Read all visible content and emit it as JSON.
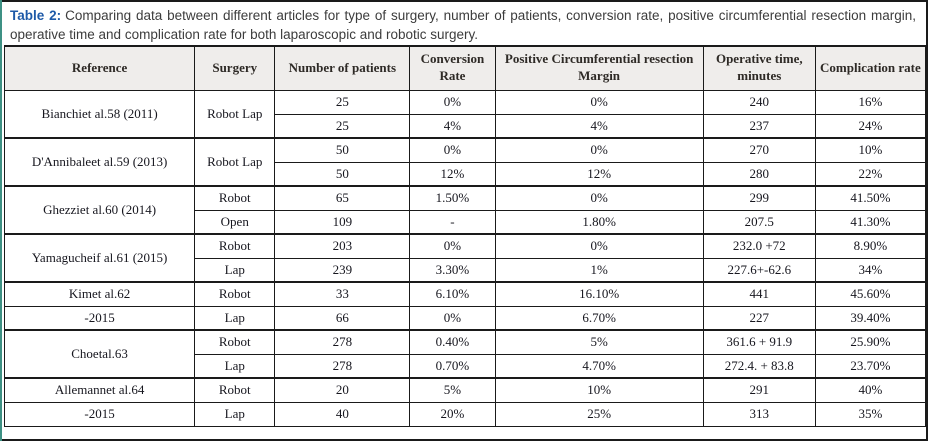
{
  "caption": {
    "label": "Table 2:",
    "text": "Comparing data between different articles for type of surgery, number of patients, conversion rate, positive circumferential resection margin, operative time and complication rate for both laparoscopic and robotic surgery."
  },
  "colors": {
    "caption_label": "#1e5aa8",
    "caption_text": "#3c3c3c",
    "header_bg": "#efedeb",
    "header_text": "#2e2a26",
    "cell_text": "#16161e",
    "border": "#1a1a1a",
    "page_edge_strip": "#3e9184"
  },
  "chart_data": {
    "type": "table",
    "title": "Table 2: Comparing data between different articles for type of surgery, number of patients, conversion rate, positive circumferential resection margin, operative time and complication rate for both laparoscopic and robotic surgery.",
    "columns": [
      "Reference",
      "Surgery",
      "Number of patients",
      "Conversion Rate",
      "Positive Circumferential resection Margin",
      "Operative time, minutes",
      "Complication rate"
    ]
  },
  "table": {
    "columns": [
      "Reference",
      "Surgery",
      "Number of patients",
      "Conversion Rate",
      "Positive Circumferential resection Margin",
      "Operative time, minutes",
      "Complication rate"
    ],
    "rows": [
      {
        "reference": {
          "text": "Bianchiet al.58 (2011)",
          "rowspan": 2
        },
        "surgery": {
          "text": "Robot Lap",
          "rowspan": 2
        },
        "values": [
          "25",
          "0%",
          "0%",
          "240",
          "16%"
        ]
      },
      {
        "values": [
          "25",
          "4%",
          "4%",
          "237",
          "24%"
        ]
      },
      {
        "group_start": true,
        "reference": {
          "text": "D'Annibaleet al.59 (2013)",
          "rowspan": 2
        },
        "surgery": {
          "text": "Robot Lap",
          "rowspan": 2
        },
        "values": [
          "50",
          "0%",
          "0%",
          "270",
          "10%"
        ]
      },
      {
        "values": [
          "50",
          "12%",
          "12%",
          "280",
          "22%"
        ]
      },
      {
        "group_start": true,
        "reference": {
          "text": "Ghezziet al.60 (2014)",
          "rowspan": 2
        },
        "surgery": {
          "text": "Robot",
          "rowspan": 1
        },
        "values": [
          "65",
          "1.50%",
          "0%",
          "299",
          "41.50%"
        ]
      },
      {
        "surgery": {
          "text": "Open",
          "rowspan": 1
        },
        "values": [
          "109",
          "-",
          "1.80%",
          "207.5",
          "41.30%"
        ]
      },
      {
        "group_start": true,
        "reference": {
          "text": "Yamagucheif al.61 (2015)",
          "rowspan": 2
        },
        "surgery": {
          "text": "Robot",
          "rowspan": 1
        },
        "values": [
          "203",
          "0%",
          "0%",
          "232.0 +72",
          "8.90%"
        ]
      },
      {
        "surgery": {
          "text": "Lap",
          "rowspan": 1
        },
        "values": [
          "239",
          "3.30%",
          "1%",
          "227.6+-62.6",
          "34%"
        ]
      },
      {
        "group_start": true,
        "reference": {
          "text": "Kimet al.62",
          "rowspan": 1
        },
        "surgery": {
          "text": "Robot",
          "rowspan": 1
        },
        "values": [
          "33",
          "6.10%",
          "16.10%",
          "441",
          "45.60%"
        ]
      },
      {
        "reference": {
          "text": "-2015",
          "rowspan": 1
        },
        "surgery": {
          "text": "Lap",
          "rowspan": 1
        },
        "values": [
          "66",
          "0%",
          "6.70%",
          "227",
          "39.40%"
        ]
      },
      {
        "group_start": true,
        "reference": {
          "text": "Choetal.63",
          "rowspan": 2
        },
        "surgery": {
          "text": "Robot",
          "rowspan": 1
        },
        "values": [
          "278",
          "0.40%",
          "5%",
          "361.6 + 91.9",
          "25.90%"
        ]
      },
      {
        "surgery": {
          "text": "Lap",
          "rowspan": 1
        },
        "values": [
          "278",
          "0.70%",
          "4.70%",
          "272.4. + 83.8",
          "23.70%"
        ]
      },
      {
        "group_start": true,
        "reference": {
          "text": "Allemannet al.64",
          "rowspan": 1
        },
        "surgery": {
          "text": "Robot",
          "rowspan": 1
        },
        "values": [
          "20",
          "5%",
          "10%",
          "291",
          "40%"
        ]
      },
      {
        "reference": {
          "text": "-2015",
          "rowspan": 1
        },
        "surgery": {
          "text": "Lap",
          "rowspan": 1
        },
        "values": [
          "40",
          "20%",
          "25%",
          "313",
          "35%"
        ]
      }
    ]
  }
}
